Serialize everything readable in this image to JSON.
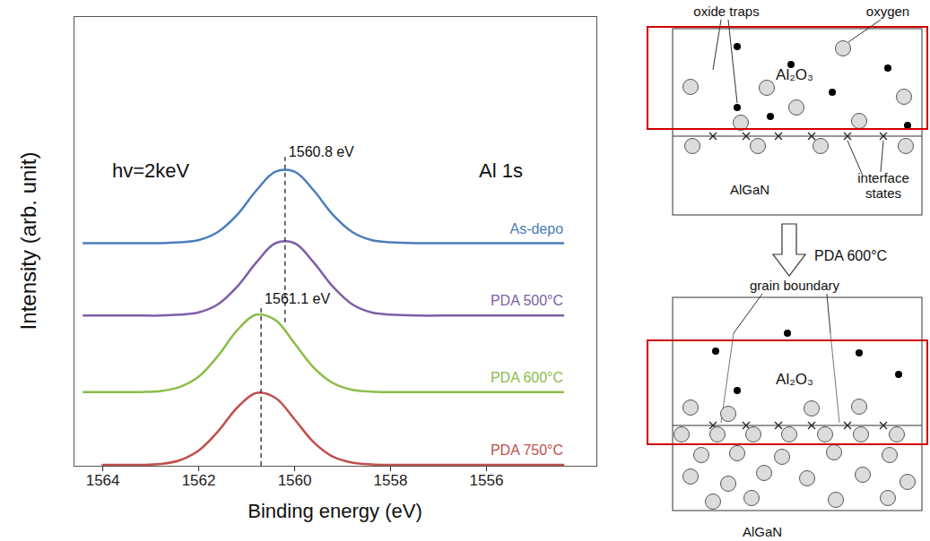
{
  "chart_data": {
    "type": "line",
    "x_label": "Binding energy (eV)",
    "y_label": "Intensity (arb. unit)",
    "xlim": [
      1564.6,
      1553.7
    ],
    "xticks": [
      1564,
      1562,
      1560,
      1558,
      1556
    ],
    "ylim": [
      0,
      100
    ],
    "tick_labels": "x",
    "grid": false,
    "x": [
      1564.4,
      1564.0,
      1563.6,
      1563.2,
      1562.8,
      1562.4,
      1562.0,
      1561.6,
      1561.2,
      1560.8,
      1560.4,
      1560.0,
      1559.6,
      1559.2,
      1558.8,
      1558.4,
      1558.0,
      1557.4,
      1556.8,
      1556.2,
      1555.6,
      1555.0,
      1554.4
    ],
    "series": [
      {
        "name": "As-depo",
        "color": "#4a7ebb",
        "values": [
          49.6,
          49.6,
          49.6,
          49.6,
          49.6,
          49.8,
          50.3,
          52.1,
          55.9,
          61.3,
          65.5,
          65.5,
          61.3,
          55.9,
          52.1,
          50.3,
          49.8,
          49.6,
          49.6,
          49.6,
          49.6,
          49.6,
          49.6
        ]
      },
      {
        "name": "PDA 500°C",
        "color": "#7e5ea8",
        "values": [
          33.5,
          33.5,
          33.5,
          33.5,
          33.5,
          33.7,
          34.2,
          36.0,
          39.9,
          45.3,
          49.6,
          49.6,
          45.3,
          39.9,
          36.0,
          34.2,
          33.7,
          33.5,
          33.5,
          33.5,
          33.5,
          33.5,
          33.5
        ]
      },
      {
        "name": "PDA 600°C",
        "color": "#8cbd4c",
        "values": [
          16.5,
          16.5,
          16.5,
          16.5,
          16.7,
          17.6,
          19.9,
          24.5,
          30.2,
          33.7,
          32.5,
          27.3,
          21.9,
          18.5,
          17.0,
          16.6,
          16.5,
          16.5,
          16.5,
          16.5,
          16.5,
          16.5,
          16.5
        ]
      },
      {
        "name": "PDA 750°C",
        "color": "#c0504d",
        "values": [
          null,
          0.3,
          0.3,
          0.3,
          0.5,
          1.3,
          3.5,
          7.7,
          13.0,
          16.3,
          15.2,
          10.4,
          5.3,
          2.1,
          0.8,
          0.4,
          0.3,
          0.3,
          0.3,
          0.3,
          0.3,
          0.3,
          0.3
        ]
      }
    ],
    "annotations": [
      {
        "text": "hv=2keV",
        "x": 1563.0,
        "y": 65.7
      },
      {
        "text": "Al 1s",
        "x": 1555.7,
        "y": 65.7
      }
    ],
    "reference_lines": [
      {
        "x": 1560.2,
        "y1": 31.9,
        "y2": 68.7,
        "label": "1560.8 eV"
      },
      {
        "x": 1560.7,
        "y1": 0,
        "y2": 35.9,
        "label": "1561.1 eV"
      }
    ]
  },
  "diagram": {
    "before": {
      "labels": [
        "oxide traps",
        "oxygen",
        "interface states"
      ],
      "layers": [
        "Al₂O₃",
        "AlGaN"
      ]
    },
    "step": "PDA 600°C",
    "after": {
      "labels": [
        "grain boundary"
      ],
      "layers": [
        "Al₂O₃",
        "AlGaN"
      ]
    }
  }
}
